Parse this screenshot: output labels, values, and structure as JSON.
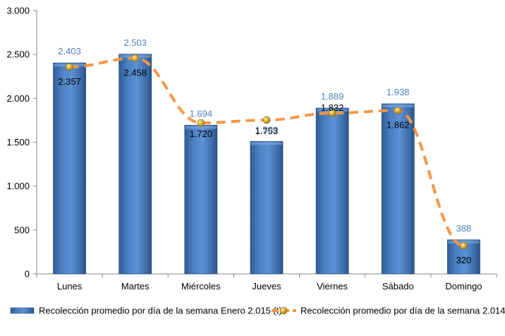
{
  "chart_data": {
    "type": "bar",
    "categories": [
      "Lunes",
      "Martes",
      "Miércoles",
      "Jueves",
      "Viernes",
      "Sábado",
      "Domingo"
    ],
    "series": [
      {
        "name": "Recolección promedio por día de la semana Enero 2.015 (t)",
        "kind": "bar",
        "values": [
          2403,
          2503,
          1694,
          1509,
          1889,
          1938,
          388
        ],
        "labels": [
          "2.403",
          "2.503",
          "1.694",
          "1.509",
          "1.889",
          "1.938",
          "388"
        ],
        "color": "#4f81bd"
      },
      {
        "name": "Recolección promedio por día de la semana 2.014 (t)",
        "kind": "line",
        "style": "dashed",
        "values": [
          2357,
          2458,
          1720,
          1753,
          1832,
          1862,
          320
        ],
        "labels": [
          "2.357",
          "2.458",
          "1.720",
          "1.753",
          "1.832",
          "1.862",
          "320"
        ],
        "color": "#f79646",
        "marker_color": "#d4a62a"
      }
    ],
    "ylim": [
      0,
      3000
    ],
    "yticks": [
      0,
      500,
      1000,
      1500,
      2000,
      2500,
      3000
    ],
    "ytick_labels": [
      "0",
      "500",
      "1.000",
      "1.500",
      "2.000",
      "2.500",
      "3.000"
    ],
    "grid": false,
    "legend_position": "bottom"
  }
}
